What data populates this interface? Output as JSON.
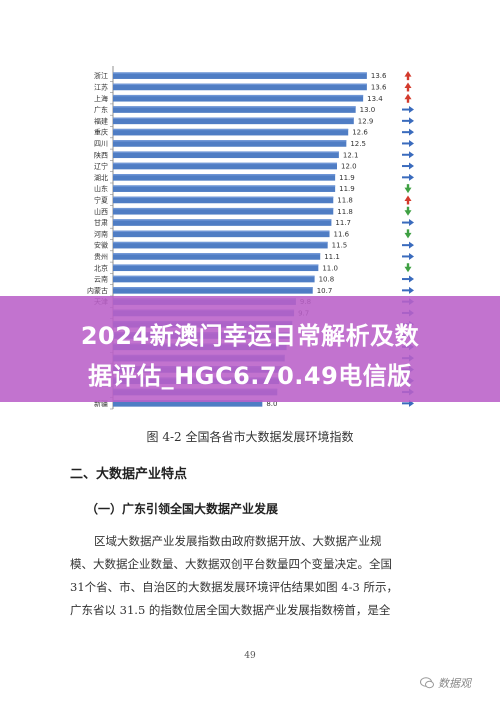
{
  "banner": {
    "line1": "2024新澳门幸运日常解析及数",
    "line2": "据评估_HGC6.70.49电信版"
  },
  "caption": "图 4-2 全国各省市大数据发展环境指数",
  "section_title": "二、大数据产业特点",
  "sub_title": "（一）广东引领全国大数据产业发展",
  "body_lines": [
    "区域大数据产业发展指数由政府数据开放、大数据产业规",
    "模、大数据企业数量、大数据双创平台数量四个变量决定。全国",
    "31个省、市、自治区的大数据发展环境评估结果如图 4-3 所示，",
    "广东省以 31.5 的指数位居全国大数据产业发展指数榜首，是全"
  ],
  "page_number": "49",
  "watermark": "数据观",
  "colors": {
    "bar": "#4f7dc4",
    "bar_top": "#6f96d6",
    "up": "#d33a2c",
    "down": "#3fa043",
    "flat": "#3a6bbd",
    "banner": "#ba60c8"
  },
  "chart_data": {
    "type": "bar",
    "orientation": "horizontal",
    "categories": [
      "浙江",
      "江苏",
      "上海",
      "广东",
      "福建",
      "重庆",
      "四川",
      "陕西",
      "辽宁",
      "湖北",
      "山东",
      "宁夏",
      "山西",
      "甘肃",
      "河南",
      "安徽",
      "贵州",
      "北京",
      "云南",
      "内蒙古",
      "天津",
      "",
      "",
      "",
      "",
      "",
      "",
      "",
      "",
      "新疆"
    ],
    "values": [
      13.6,
      13.6,
      13.4,
      13.0,
      12.9,
      12.6,
      12.5,
      12.1,
      12.0,
      11.9,
      11.9,
      11.8,
      11.8,
      11.7,
      11.6,
      11.5,
      11.1,
      11.0,
      10.8,
      10.7,
      9.8,
      9.7,
      9.6,
      9.5,
      9.3,
      9.2,
      9.1,
      8.9,
      8.8,
      8.0
    ],
    "value_labels": [
      "13.6",
      "13.6",
      "13.4",
      "13.0",
      "12.9",
      "12.6",
      "12.5",
      "12.1",
      "12.0",
      "11.9",
      "11.9",
      "11.8",
      "11.8",
      "11.7",
      "11.6",
      "11.5",
      "11.1",
      "11.0",
      "10.8",
      "10.7",
      "9.8",
      "9.7",
      "",
      "",
      "",
      "",
      "",
      "",
      "",
      "8.0"
    ],
    "trends": [
      "up",
      "up",
      "up",
      "right",
      "right",
      "right",
      "right",
      "right",
      "right",
      "right",
      "down",
      "up",
      "down",
      "right",
      "down",
      "right",
      "right",
      "down",
      "right",
      "right",
      "right",
      "right",
      "right",
      "right",
      "right",
      "right",
      "right",
      "right",
      "right",
      "right"
    ],
    "xlim": [
      0,
      15
    ],
    "grid": false,
    "legend": "none"
  }
}
